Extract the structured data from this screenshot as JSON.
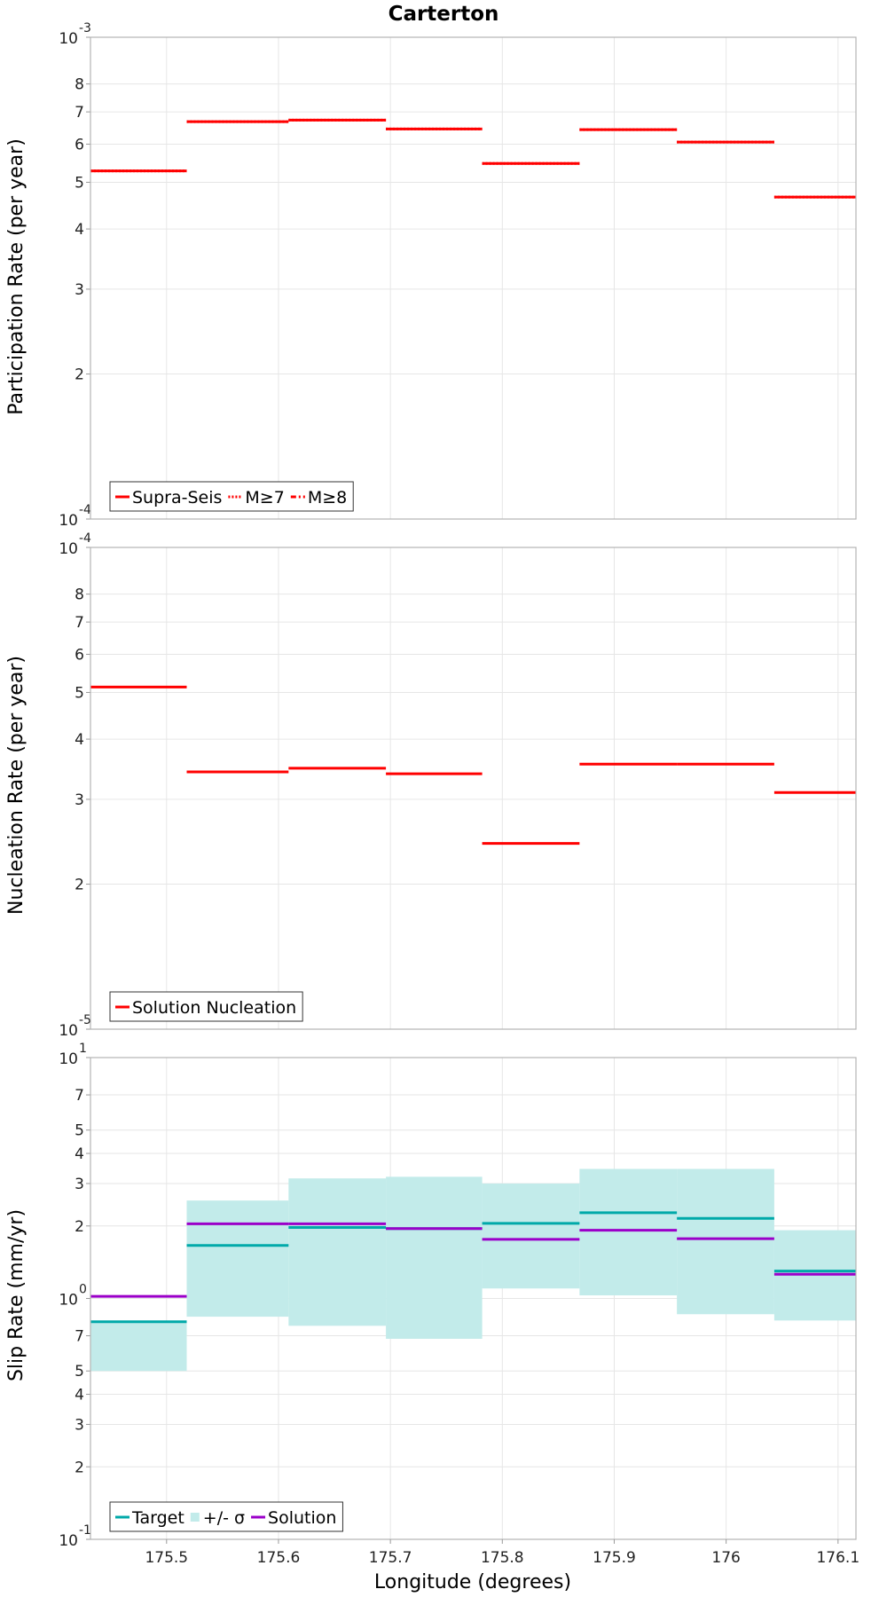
{
  "chart_data": [
    {
      "type": "line",
      "title": "Carterton",
      "xlabel": "",
      "ylabel": "Participation Rate (per year)",
      "yscale": "log",
      "ylim": [
        0.0001,
        0.001
      ],
      "xlim": [
        175.432,
        176.116
      ],
      "grid": true,
      "legend": "bottom-left",
      "y_ticks": [
        {
          "v": 0.0001,
          "base": "10",
          "exp": "-4"
        },
        {
          "v": 0.0002,
          "label": "2"
        },
        {
          "v": 0.0003,
          "label": "3"
        },
        {
          "v": 0.0004,
          "label": "4"
        },
        {
          "v": 0.0005,
          "label": "5"
        },
        {
          "v": 0.0006,
          "label": "6"
        },
        {
          "v": 0.0007,
          "label": "7"
        },
        {
          "v": 0.0008,
          "label": "8"
        },
        {
          "v": 0.001,
          "base": "10",
          "exp": "-3"
        }
      ],
      "legend_entries": [
        {
          "label": "Supra-Seis",
          "color": "#ff0000",
          "style": "solid",
          "kind": "line"
        },
        {
          "label": "M≥7",
          "color": "#ff0000",
          "style": "dotted",
          "kind": "line"
        },
        {
          "label": "M≥8",
          "color": "#ff0000",
          "style": "dashdot",
          "kind": "line"
        }
      ],
      "series": [
        {
          "color": "#ff0000",
          "style": "solid",
          "segments": [
            {
              "x0": 175.432,
              "x1": 175.518,
              "y": 0.000528
            },
            {
              "x0": 175.518,
              "x1": 175.609,
              "y": 0.000668
            },
            {
              "x0": 175.609,
              "x1": 175.696,
              "y": 0.000673
            },
            {
              "x0": 175.696,
              "x1": 175.782,
              "y": 0.000645
            },
            {
              "x0": 175.782,
              "x1": 175.869,
              "y": 0.000547
            },
            {
              "x0": 175.869,
              "x1": 175.956,
              "y": 0.000643
            },
            {
              "x0": 175.956,
              "x1": 176.043,
              "y": 0.000606
            },
            {
              "x0": 176.043,
              "x1": 176.116,
              "y": 0.000466
            }
          ]
        },
        {
          "color": "#ff0000",
          "style": "dotted",
          "segments": [
            {
              "x0": 175.432,
              "x1": 175.518,
              "y": 0.000528
            },
            {
              "x0": 175.518,
              "x1": 175.609,
              "y": 0.000668
            },
            {
              "x0": 175.609,
              "x1": 175.696,
              "y": 0.000673
            },
            {
              "x0": 175.696,
              "x1": 175.782,
              "y": 0.000645
            },
            {
              "x0": 175.782,
              "x1": 175.869,
              "y": 0.000547
            },
            {
              "x0": 175.869,
              "x1": 175.956,
              "y": 0.000643
            },
            {
              "x0": 175.956,
              "x1": 176.043,
              "y": 0.000606
            },
            {
              "x0": 176.043,
              "x1": 176.116,
              "y": 0.000466
            }
          ]
        }
      ]
    },
    {
      "type": "line",
      "xlabel": "",
      "ylabel": "Nucleation Rate (per year)",
      "yscale": "log",
      "ylim": [
        1e-05,
        0.0001
      ],
      "xlim": [
        175.432,
        176.116
      ],
      "grid": true,
      "legend": "bottom-left",
      "y_ticks": [
        {
          "v": 1e-05,
          "base": "10",
          "exp": "-5"
        },
        {
          "v": 2e-05,
          "label": "2"
        },
        {
          "v": 3e-05,
          "label": "3"
        },
        {
          "v": 4e-05,
          "label": "4"
        },
        {
          "v": 5e-05,
          "label": "5"
        },
        {
          "v": 6e-05,
          "label": "6"
        },
        {
          "v": 7e-05,
          "label": "7"
        },
        {
          "v": 8e-05,
          "label": "8"
        },
        {
          "v": 0.0001,
          "base": "10",
          "exp": "-4"
        }
      ],
      "legend_entries": [
        {
          "label": "Solution Nucleation",
          "color": "#ff0000",
          "style": "solid",
          "kind": "line"
        }
      ],
      "series": [
        {
          "color": "#ff0000",
          "style": "solid",
          "segments": [
            {
              "x0": 175.432,
              "x1": 175.518,
              "y": 5.13e-05
            },
            {
              "x0": 175.518,
              "x1": 175.609,
              "y": 3.42e-05
            },
            {
              "x0": 175.609,
              "x1": 175.696,
              "y": 3.48e-05
            },
            {
              "x0": 175.696,
              "x1": 175.782,
              "y": 3.39e-05
            },
            {
              "x0": 175.782,
              "x1": 175.869,
              "y": 2.43e-05
            },
            {
              "x0": 175.869,
              "x1": 175.956,
              "y": 3.55e-05
            },
            {
              "x0": 175.956,
              "x1": 176.043,
              "y": 3.55e-05
            },
            {
              "x0": 176.043,
              "x1": 176.116,
              "y": 3.1e-05
            }
          ]
        }
      ]
    },
    {
      "type": "line",
      "xlabel": "Longitude (degrees)",
      "ylabel": "Slip Rate (mm/yr)",
      "yscale": "log",
      "ylim": [
        0.1,
        10
      ],
      "xlim": [
        175.432,
        176.116
      ],
      "grid": true,
      "legend": "bottom-left",
      "x_ticks": [
        {
          "v": 175.5,
          "label": "175.5"
        },
        {
          "v": 175.6,
          "label": "175.6"
        },
        {
          "v": 175.7,
          "label": "175.7"
        },
        {
          "v": 175.8,
          "label": "175.8"
        },
        {
          "v": 175.9,
          "label": "175.9"
        },
        {
          "v": 176.0,
          "label": "176"
        },
        {
          "v": 176.1,
          "label": "176.1"
        }
      ],
      "y_ticks": [
        {
          "v": 0.1,
          "base": "10",
          "exp": "-1"
        },
        {
          "v": 0.2,
          "label": "2"
        },
        {
          "v": 0.3,
          "label": "3"
        },
        {
          "v": 0.4,
          "label": "4"
        },
        {
          "v": 0.5,
          "label": "5"
        },
        {
          "v": 0.7,
          "label": "7"
        },
        {
          "v": 1,
          "base": "10",
          "exp": "0"
        },
        {
          "v": 2,
          "label": "2"
        },
        {
          "v": 3,
          "label": "3"
        },
        {
          "v": 4,
          "label": "4"
        },
        {
          "v": 5,
          "label": "5"
        },
        {
          "v": 7,
          "label": "7"
        },
        {
          "v": 10,
          "base": "10",
          "exp": "1"
        }
      ],
      "legend_entries": [
        {
          "label": "Target",
          "color": "#00a9a9",
          "style": "solid",
          "kind": "line"
        },
        {
          "label": "+/- σ",
          "color": "#c2ebea",
          "style": "solid",
          "kind": "box"
        },
        {
          "label": "Solution",
          "color": "#9b00c9",
          "style": "solid",
          "kind": "line"
        }
      ],
      "band": {
        "color": "#c2ebea",
        "segments": [
          {
            "x0": 175.432,
            "x1": 175.518,
            "lo": 0.5,
            "hi": 0.8
          },
          {
            "x0": 175.518,
            "x1": 175.609,
            "lo": 0.84,
            "hi": 2.55
          },
          {
            "x0": 175.609,
            "x1": 175.696,
            "lo": 0.77,
            "hi": 3.15
          },
          {
            "x0": 175.696,
            "x1": 175.782,
            "lo": 0.68,
            "hi": 3.2
          },
          {
            "x0": 175.782,
            "x1": 175.869,
            "lo": 1.1,
            "hi": 3.0
          },
          {
            "x0": 175.869,
            "x1": 175.956,
            "lo": 1.03,
            "hi": 3.45
          },
          {
            "x0": 175.956,
            "x1": 176.043,
            "lo": 0.86,
            "hi": 3.45
          },
          {
            "x0": 176.043,
            "x1": 176.116,
            "lo": 0.81,
            "hi": 1.92
          }
        ]
      },
      "series": [
        {
          "name": "Target",
          "color": "#00a9a9",
          "style": "solid",
          "segments": [
            {
              "x0": 175.432,
              "x1": 175.518,
              "y": 0.8
            },
            {
              "x0": 175.518,
              "x1": 175.609,
              "y": 1.66
            },
            {
              "x0": 175.609,
              "x1": 175.696,
              "y": 1.97
            },
            {
              "x0": 175.696,
              "x1": 175.782,
              "y": 1.95
            },
            {
              "x0": 175.782,
              "x1": 175.869,
              "y": 2.05
            },
            {
              "x0": 175.869,
              "x1": 175.956,
              "y": 2.27
            },
            {
              "x0": 175.956,
              "x1": 176.043,
              "y": 2.15
            },
            {
              "x0": 176.043,
              "x1": 176.116,
              "y": 1.3
            }
          ]
        },
        {
          "name": "Solution",
          "color": "#9b00c9",
          "style": "solid",
          "segments": [
            {
              "x0": 175.432,
              "x1": 175.518,
              "y": 1.02
            },
            {
              "x0": 175.518,
              "x1": 175.609,
              "y": 2.04
            },
            {
              "x0": 175.609,
              "x1": 175.696,
              "y": 2.04
            },
            {
              "x0": 175.696,
              "x1": 175.782,
              "y": 1.95
            },
            {
              "x0": 175.782,
              "x1": 175.869,
              "y": 1.76
            },
            {
              "x0": 175.869,
              "x1": 175.956,
              "y": 1.92
            },
            {
              "x0": 175.956,
              "x1": 176.043,
              "y": 1.77
            },
            {
              "x0": 176.043,
              "x1": 176.116,
              "y": 1.26
            }
          ]
        }
      ]
    }
  ]
}
